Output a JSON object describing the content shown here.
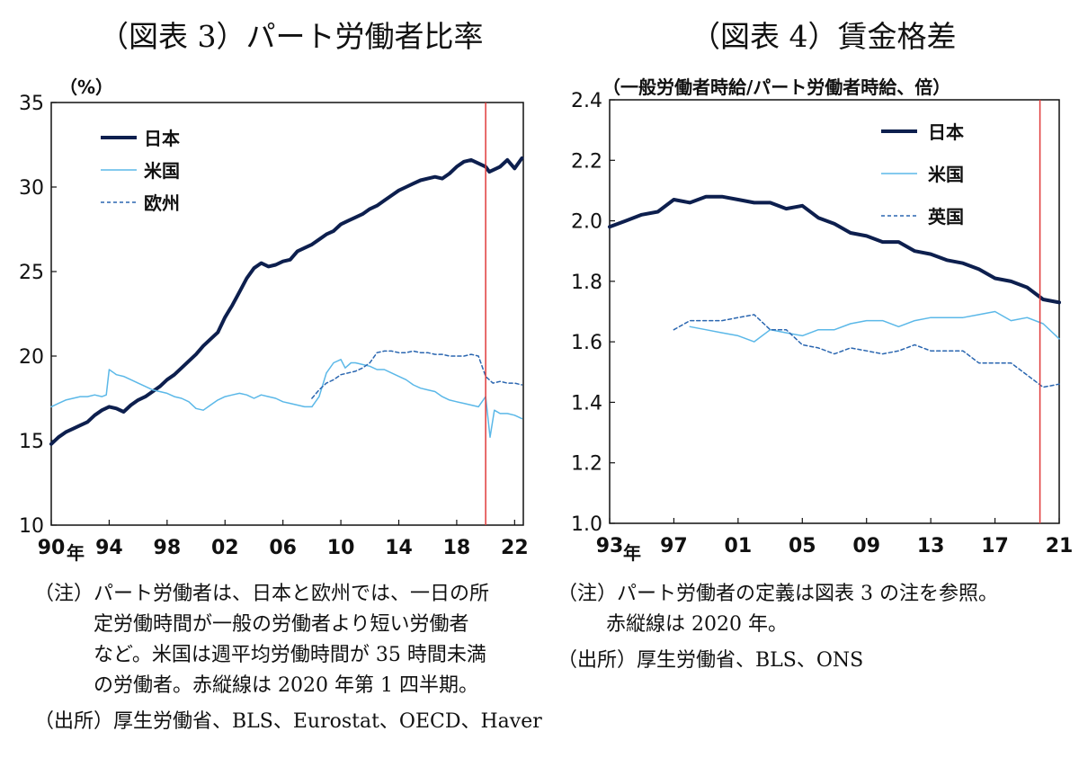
{
  "colors": {
    "japan": "#0d1f4e",
    "us": "#5bb8e8",
    "europe": "#2a66b0",
    "uk": "#2a66b0",
    "red_line": "#e03a3a"
  },
  "fig3": {
    "title": "（図表 3）パート労働者比率",
    "unit_label": "（%）",
    "year_label": "年",
    "notes": [
      "（注）パート労働者は、日本と欧州では、一日の所",
      "定労働時間が一般の労働者より短い労働者",
      "など。米国は週平均労働時間が 35 時間未満",
      "の労働者。赤縦線は 2020 年第 1 四半期。",
      "（出所）厚生労働省、BLS、Eurostat、OECD、Haver"
    ],
    "legend": [
      "日本",
      "米国",
      "欧州"
    ]
  },
  "fig4": {
    "title": "（図表 4）賃金格差",
    "unit_label": "（一般労働者時給/パート労働者時給、倍）",
    "year_label": "年",
    "notes": [
      "（注）パート労働者の定義は図表 3 の注を参照。",
      "赤縦線は 2020 年。",
      "（出所）厚生労働省、BLS、ONS"
    ],
    "legend": [
      "日本",
      "米国",
      "英国"
    ]
  },
  "chart_data": [
    {
      "type": "line",
      "title": "（図表 3）パート労働者比率",
      "ylabel": "（%）",
      "xlabel": "年",
      "ylim": [
        10,
        35
      ],
      "xlim": [
        1990,
        2022.6
      ],
      "yticks": [
        10,
        15,
        20,
        25,
        30,
        35
      ],
      "xticks": [
        1990,
        1994,
        1998,
        2002,
        2006,
        2010,
        2014,
        2018,
        2022
      ],
      "xtick_labels": [
        "90",
        "94",
        "98",
        "02",
        "06",
        "10",
        "14",
        "18",
        "22"
      ],
      "vline_x": 2020.0,
      "legend_position": "top-left",
      "series": [
        {
          "name": "日本",
          "style": "thick",
          "points": [
            [
              1990.0,
              14.8
            ],
            [
              1990.5,
              15.2
            ],
            [
              1991.0,
              15.5
            ],
            [
              1991.5,
              15.7
            ],
            [
              1992.0,
              15.9
            ],
            [
              1992.5,
              16.1
            ],
            [
              1993.0,
              16.5
            ],
            [
              1993.5,
              16.8
            ],
            [
              1994.0,
              17.0
            ],
            [
              1994.5,
              16.9
            ],
            [
              1995.0,
              16.7
            ],
            [
              1995.5,
              17.1
            ],
            [
              1996.0,
              17.4
            ],
            [
              1996.5,
              17.6
            ],
            [
              1997.0,
              17.9
            ],
            [
              1997.5,
              18.2
            ],
            [
              1998.0,
              18.6
            ],
            [
              1998.5,
              18.9
            ],
            [
              1999.0,
              19.3
            ],
            [
              1999.5,
              19.7
            ],
            [
              2000.0,
              20.1
            ],
            [
              2000.5,
              20.6
            ],
            [
              2001.0,
              21.0
            ],
            [
              2001.5,
              21.4
            ],
            [
              2002.0,
              22.3
            ],
            [
              2002.5,
              23.0
            ],
            [
              2003.0,
              23.8
            ],
            [
              2003.5,
              24.6
            ],
            [
              2004.0,
              25.2
            ],
            [
              2004.5,
              25.5
            ],
            [
              2005.0,
              25.3
            ],
            [
              2005.5,
              25.4
            ],
            [
              2006.0,
              25.6
            ],
            [
              2006.5,
              25.7
            ],
            [
              2007.0,
              26.2
            ],
            [
              2007.5,
              26.4
            ],
            [
              2008.0,
              26.6
            ],
            [
              2008.5,
              26.9
            ],
            [
              2009.0,
              27.2
            ],
            [
              2009.5,
              27.4
            ],
            [
              2010.0,
              27.8
            ],
            [
              2010.5,
              28.0
            ],
            [
              2011.0,
              28.2
            ],
            [
              2011.5,
              28.4
            ],
            [
              2012.0,
              28.7
            ],
            [
              2012.5,
              28.9
            ],
            [
              2013.0,
              29.2
            ],
            [
              2013.5,
              29.5
            ],
            [
              2014.0,
              29.8
            ],
            [
              2014.5,
              30.0
            ],
            [
              2015.0,
              30.2
            ],
            [
              2015.5,
              30.4
            ],
            [
              2016.0,
              30.5
            ],
            [
              2016.5,
              30.6
            ],
            [
              2017.0,
              30.5
            ],
            [
              2017.5,
              30.8
            ],
            [
              2018.0,
              31.2
            ],
            [
              2018.5,
              31.5
            ],
            [
              2019.0,
              31.6
            ],
            [
              2019.5,
              31.4
            ],
            [
              2020.0,
              31.2
            ],
            [
              2020.25,
              30.9
            ],
            [
              2020.5,
              31.0
            ],
            [
              2021.0,
              31.2
            ],
            [
              2021.5,
              31.6
            ],
            [
              2022.0,
              31.1
            ],
            [
              2022.5,
              31.7
            ]
          ]
        },
        {
          "name": "米国",
          "style": "thin",
          "points": [
            [
              1990.0,
              17.0
            ],
            [
              1990.5,
              17.2
            ],
            [
              1991.0,
              17.4
            ],
            [
              1991.5,
              17.5
            ],
            [
              1992.0,
              17.6
            ],
            [
              1992.5,
              17.6
            ],
            [
              1993.0,
              17.7
            ],
            [
              1993.5,
              17.6
            ],
            [
              1993.8,
              17.7
            ],
            [
              1994.0,
              19.2
            ],
            [
              1994.5,
              18.9
            ],
            [
              1995.0,
              18.8
            ],
            [
              1995.5,
              18.6
            ],
            [
              1996.0,
              18.4
            ],
            [
              1996.5,
              18.2
            ],
            [
              1997.0,
              18.0
            ],
            [
              1997.5,
              17.9
            ],
            [
              1998.0,
              17.8
            ],
            [
              1998.5,
              17.6
            ],
            [
              1999.0,
              17.5
            ],
            [
              1999.5,
              17.3
            ],
            [
              2000.0,
              16.9
            ],
            [
              2000.5,
              16.8
            ],
            [
              2001.0,
              17.1
            ],
            [
              2001.5,
              17.4
            ],
            [
              2002.0,
              17.6
            ],
            [
              2002.5,
              17.7
            ],
            [
              2003.0,
              17.8
            ],
            [
              2003.5,
              17.7
            ],
            [
              2004.0,
              17.5
            ],
            [
              2004.5,
              17.7
            ],
            [
              2005.0,
              17.6
            ],
            [
              2005.5,
              17.5
            ],
            [
              2006.0,
              17.3
            ],
            [
              2006.5,
              17.2
            ],
            [
              2007.0,
              17.1
            ],
            [
              2007.5,
              17.0
            ],
            [
              2008.0,
              17.0
            ],
            [
              2008.5,
              17.6
            ],
            [
              2009.0,
              19.0
            ],
            [
              2009.5,
              19.6
            ],
            [
              2010.0,
              19.8
            ],
            [
              2010.3,
              19.3
            ],
            [
              2010.7,
              19.6
            ],
            [
              2011.0,
              19.6
            ],
            [
              2011.5,
              19.5
            ],
            [
              2012.0,
              19.4
            ],
            [
              2012.5,
              19.2
            ],
            [
              2013.0,
              19.2
            ],
            [
              2013.5,
              19.0
            ],
            [
              2014.0,
              18.8
            ],
            [
              2014.5,
              18.6
            ],
            [
              2015.0,
              18.3
            ],
            [
              2015.5,
              18.1
            ],
            [
              2016.0,
              18.0
            ],
            [
              2016.5,
              17.9
            ],
            [
              2017.0,
              17.6
            ],
            [
              2017.5,
              17.4
            ],
            [
              2018.0,
              17.3
            ],
            [
              2018.5,
              17.2
            ],
            [
              2019.0,
              17.1
            ],
            [
              2019.5,
              17.0
            ],
            [
              2020.0,
              17.6
            ],
            [
              2020.3,
              15.2
            ],
            [
              2020.6,
              16.8
            ],
            [
              2021.0,
              16.6
            ],
            [
              2021.5,
              16.6
            ],
            [
              2022.0,
              16.5
            ],
            [
              2022.5,
              16.3
            ]
          ]
        },
        {
          "name": "欧州",
          "style": "dashed",
          "points": [
            [
              2008.0,
              17.5
            ],
            [
              2008.5,
              18.0
            ],
            [
              2009.0,
              18.4
            ],
            [
              2009.5,
              18.6
            ],
            [
              2010.0,
              18.9
            ],
            [
              2010.5,
              19.0
            ],
            [
              2011.0,
              19.1
            ],
            [
              2011.5,
              19.3
            ],
            [
              2012.0,
              19.6
            ],
            [
              2012.5,
              20.2
            ],
            [
              2013.0,
              20.3
            ],
            [
              2013.5,
              20.3
            ],
            [
              2014.0,
              20.2
            ],
            [
              2014.5,
              20.2
            ],
            [
              2015.0,
              20.3
            ],
            [
              2015.5,
              20.2
            ],
            [
              2016.0,
              20.2
            ],
            [
              2016.5,
              20.1
            ],
            [
              2017.0,
              20.1
            ],
            [
              2017.5,
              20.0
            ],
            [
              2018.0,
              20.0
            ],
            [
              2018.5,
              20.0
            ],
            [
              2019.0,
              20.1
            ],
            [
              2019.5,
              20.0
            ],
            [
              2020.0,
              18.8
            ],
            [
              2020.5,
              18.4
            ],
            [
              2021.0,
              18.5
            ],
            [
              2021.5,
              18.4
            ],
            [
              2022.0,
              18.4
            ],
            [
              2022.5,
              18.3
            ]
          ]
        }
      ]
    },
    {
      "type": "line",
      "title": "（図表 4）賃金格差",
      "ylabel": "（一般労働者時給/パート労働者時給、倍）",
      "xlabel": "年",
      "ylim": [
        1.0,
        2.4
      ],
      "xlim": [
        1993,
        2021
      ],
      "yticks": [
        1.0,
        1.2,
        1.4,
        1.6,
        1.8,
        2.0,
        2.2,
        2.4
      ],
      "xticks": [
        1993,
        1997,
        2001,
        2005,
        2009,
        2013,
        2017,
        2021
      ],
      "xtick_labels": [
        "93",
        "97",
        "01",
        "05",
        "09",
        "13",
        "17",
        "21"
      ],
      "vline_x": 2019.8,
      "legend_position": "top-right",
      "series": [
        {
          "name": "日本",
          "style": "thick",
          "points": [
            [
              1993,
              1.98
            ],
            [
              1994,
              2.0
            ],
            [
              1995,
              2.02
            ],
            [
              1996,
              2.03
            ],
            [
              1997,
              2.07
            ],
            [
              1998,
              2.06
            ],
            [
              1999,
              2.08
            ],
            [
              2000,
              2.08
            ],
            [
              2001,
              2.07
            ],
            [
              2002,
              2.06
            ],
            [
              2003,
              2.06
            ],
            [
              2004,
              2.04
            ],
            [
              2005,
              2.05
            ],
            [
              2006,
              2.01
            ],
            [
              2007,
              1.99
            ],
            [
              2008,
              1.96
            ],
            [
              2009,
              1.95
            ],
            [
              2010,
              1.93
            ],
            [
              2011,
              1.93
            ],
            [
              2012,
              1.9
            ],
            [
              2013,
              1.89
            ],
            [
              2014,
              1.87
            ],
            [
              2015,
              1.86
            ],
            [
              2016,
              1.84
            ],
            [
              2017,
              1.81
            ],
            [
              2018,
              1.8
            ],
            [
              2019,
              1.78
            ],
            [
              2020,
              1.74
            ],
            [
              2021,
              1.73
            ]
          ]
        },
        {
          "name": "米国",
          "style": "thin",
          "points": [
            [
              1998,
              1.65
            ],
            [
              1999,
              1.64
            ],
            [
              2000,
              1.63
            ],
            [
              2001,
              1.62
            ],
            [
              2002,
              1.6
            ],
            [
              2003,
              1.64
            ],
            [
              2004,
              1.63
            ],
            [
              2005,
              1.62
            ],
            [
              2006,
              1.64
            ],
            [
              2007,
              1.64
            ],
            [
              2008,
              1.66
            ],
            [
              2009,
              1.67
            ],
            [
              2010,
              1.67
            ],
            [
              2011,
              1.65
            ],
            [
              2012,
              1.67
            ],
            [
              2013,
              1.68
            ],
            [
              2014,
              1.68
            ],
            [
              2015,
              1.68
            ],
            [
              2016,
              1.69
            ],
            [
              2017,
              1.7
            ],
            [
              2018,
              1.67
            ],
            [
              2019,
              1.68
            ],
            [
              2020,
              1.66
            ],
            [
              2021,
              1.61
            ]
          ]
        },
        {
          "name": "英国",
          "style": "dashed",
          "points": [
            [
              1997,
              1.64
            ],
            [
              1998,
              1.67
            ],
            [
              1999,
              1.67
            ],
            [
              2000,
              1.67
            ],
            [
              2001,
              1.68
            ],
            [
              2002,
              1.69
            ],
            [
              2003,
              1.64
            ],
            [
              2004,
              1.64
            ],
            [
              2005,
              1.59
            ],
            [
              2006,
              1.58
            ],
            [
              2007,
              1.56
            ],
            [
              2008,
              1.58
            ],
            [
              2009,
              1.57
            ],
            [
              2010,
              1.56
            ],
            [
              2011,
              1.57
            ],
            [
              2012,
              1.59
            ],
            [
              2013,
              1.57
            ],
            [
              2014,
              1.57
            ],
            [
              2015,
              1.57
            ],
            [
              2016,
              1.53
            ],
            [
              2017,
              1.53
            ],
            [
              2018,
              1.53
            ],
            [
              2019,
              1.49
            ],
            [
              2020,
              1.45
            ],
            [
              2021,
              1.46
            ]
          ]
        }
      ]
    }
  ]
}
